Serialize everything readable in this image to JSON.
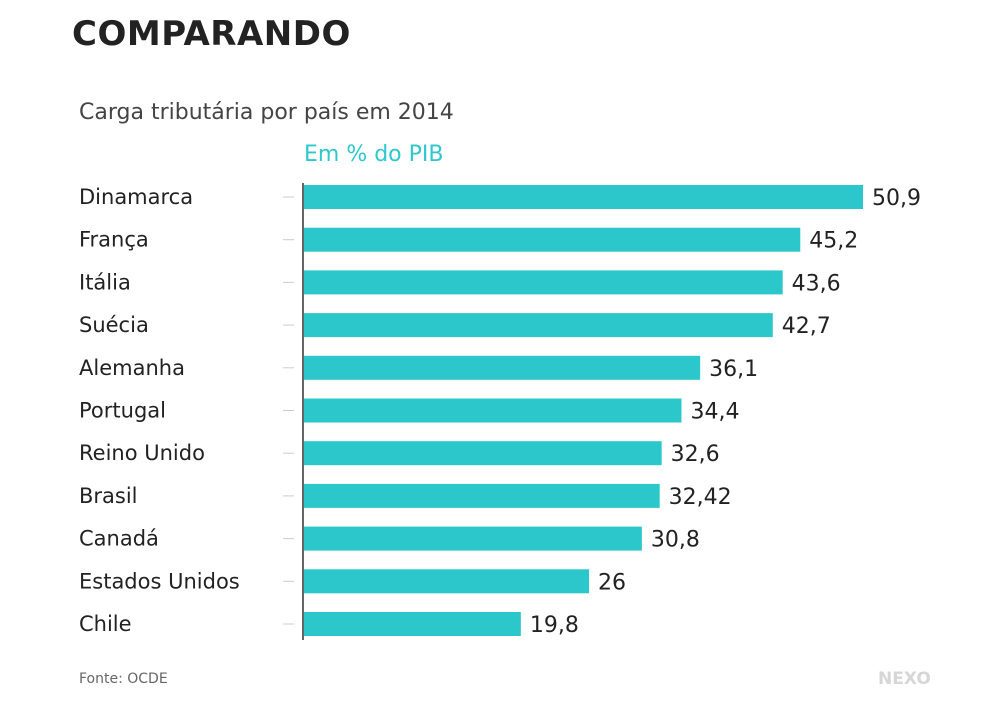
{
  "heading": "COMPARANDO",
  "source": "Fonte: OCDE",
  "logo": "NEXO",
  "colors": {
    "bar": "#2bc7cb",
    "subtitle": "#2ec8cc"
  },
  "chart_data": {
    "type": "bar",
    "orientation": "horizontal",
    "title": "Carga tributária por país em 2014",
    "subtitle": "Em % do PIB",
    "xlabel": "",
    "ylabel": "",
    "categories": [
      "Dinamarca",
      "França",
      "Itália",
      "Suécia",
      "Alemanha",
      "Portugal",
      "Reino Unido",
      "Brasil",
      "Canadá",
      "Estados Unidos",
      "Chile"
    ],
    "values": [
      50.9,
      45.2,
      43.6,
      42.7,
      36.1,
      34.4,
      32.6,
      32.42,
      30.8,
      26,
      19.8
    ],
    "value_labels": [
      "50,9",
      "45,2",
      "43,6",
      "42,7",
      "36,1",
      "34,4",
      "32,6",
      "32,42",
      "30,8",
      "26",
      "19,8"
    ],
    "xlim": [
      0,
      50.9
    ],
    "grid": false
  }
}
